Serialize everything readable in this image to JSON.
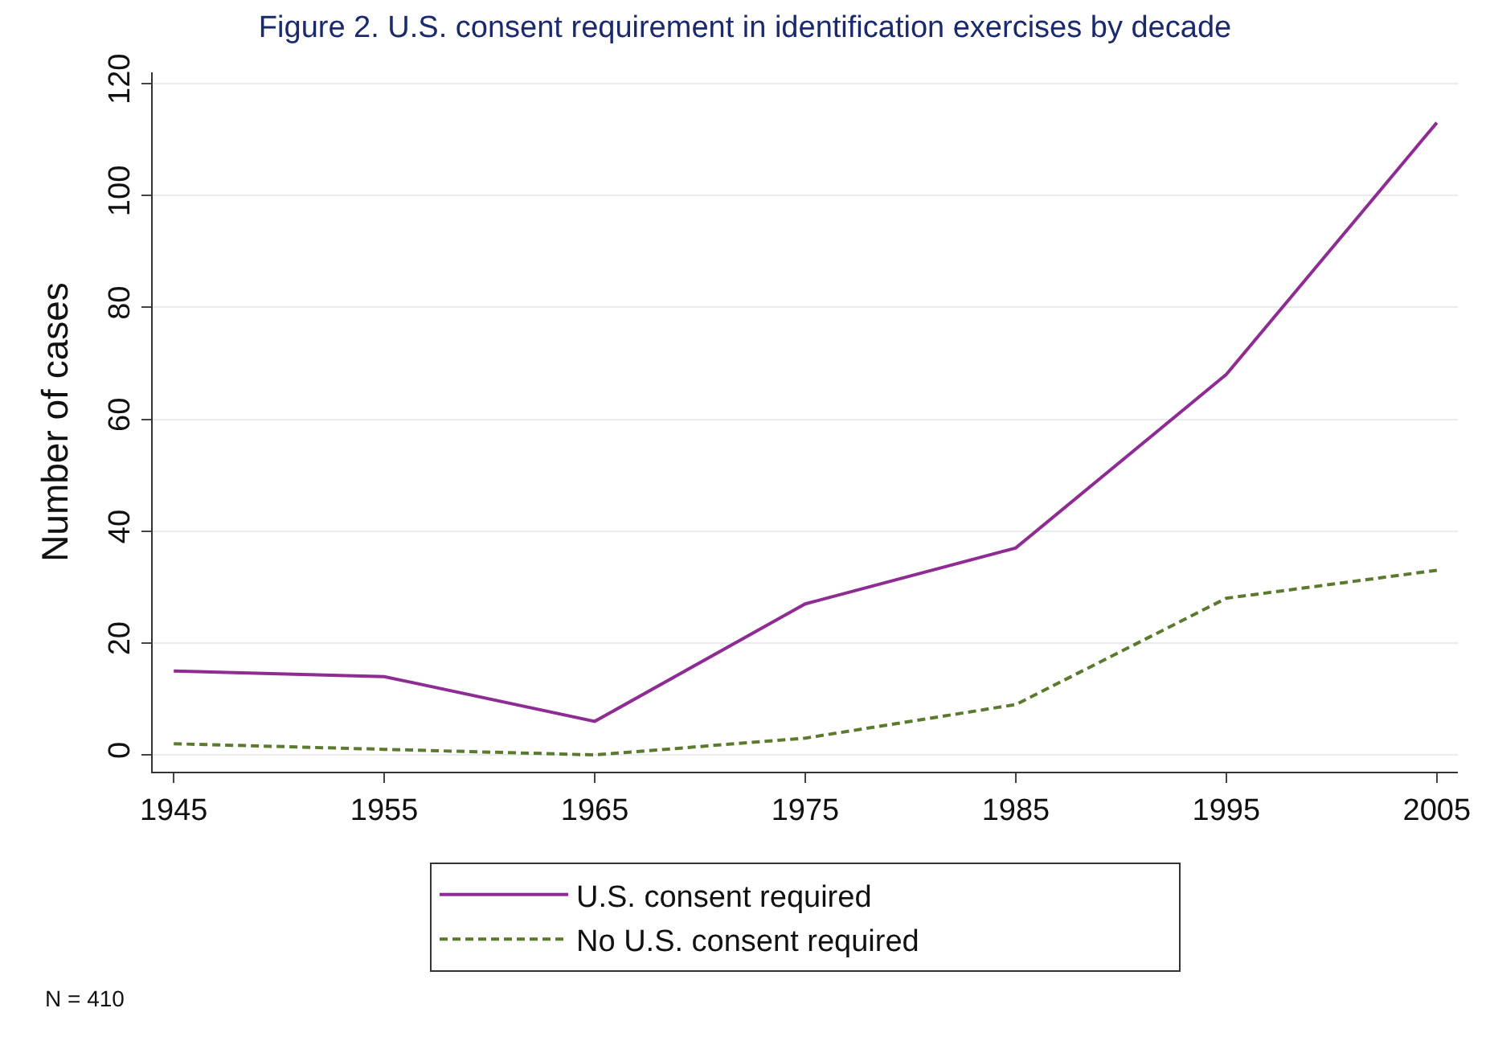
{
  "chart_data": {
    "type": "line",
    "title": "Figure 2. U.S. consent requirement in identification exercises by decade",
    "ylabel": "Number of cases",
    "x": [
      1945,
      1955,
      1965,
      1975,
      1985,
      1995,
      2005
    ],
    "series": [
      {
        "name": "U.S. consent required",
        "color": "#8e2c93",
        "line_style": "solid",
        "values": [
          15,
          14,
          6,
          27,
          37,
          68,
          113
        ]
      },
      {
        "name": "No U.S. consent required",
        "color": "#5b7a2e",
        "line_style": "dashed",
        "values": [
          2,
          1,
          0,
          3,
          9,
          28,
          33
        ]
      }
    ],
    "xlim": [
      1944,
      2006
    ],
    "xticks": [
      1945,
      1955,
      1965,
      1975,
      1985,
      1995,
      2005
    ],
    "ylim": [
      -3,
      122
    ],
    "yticks": [
      0,
      20,
      40,
      60,
      80,
      100,
      120
    ],
    "grid": "y",
    "legend": "bottom",
    "marker": "none",
    "annotations": [
      "N = 410"
    ]
  }
}
